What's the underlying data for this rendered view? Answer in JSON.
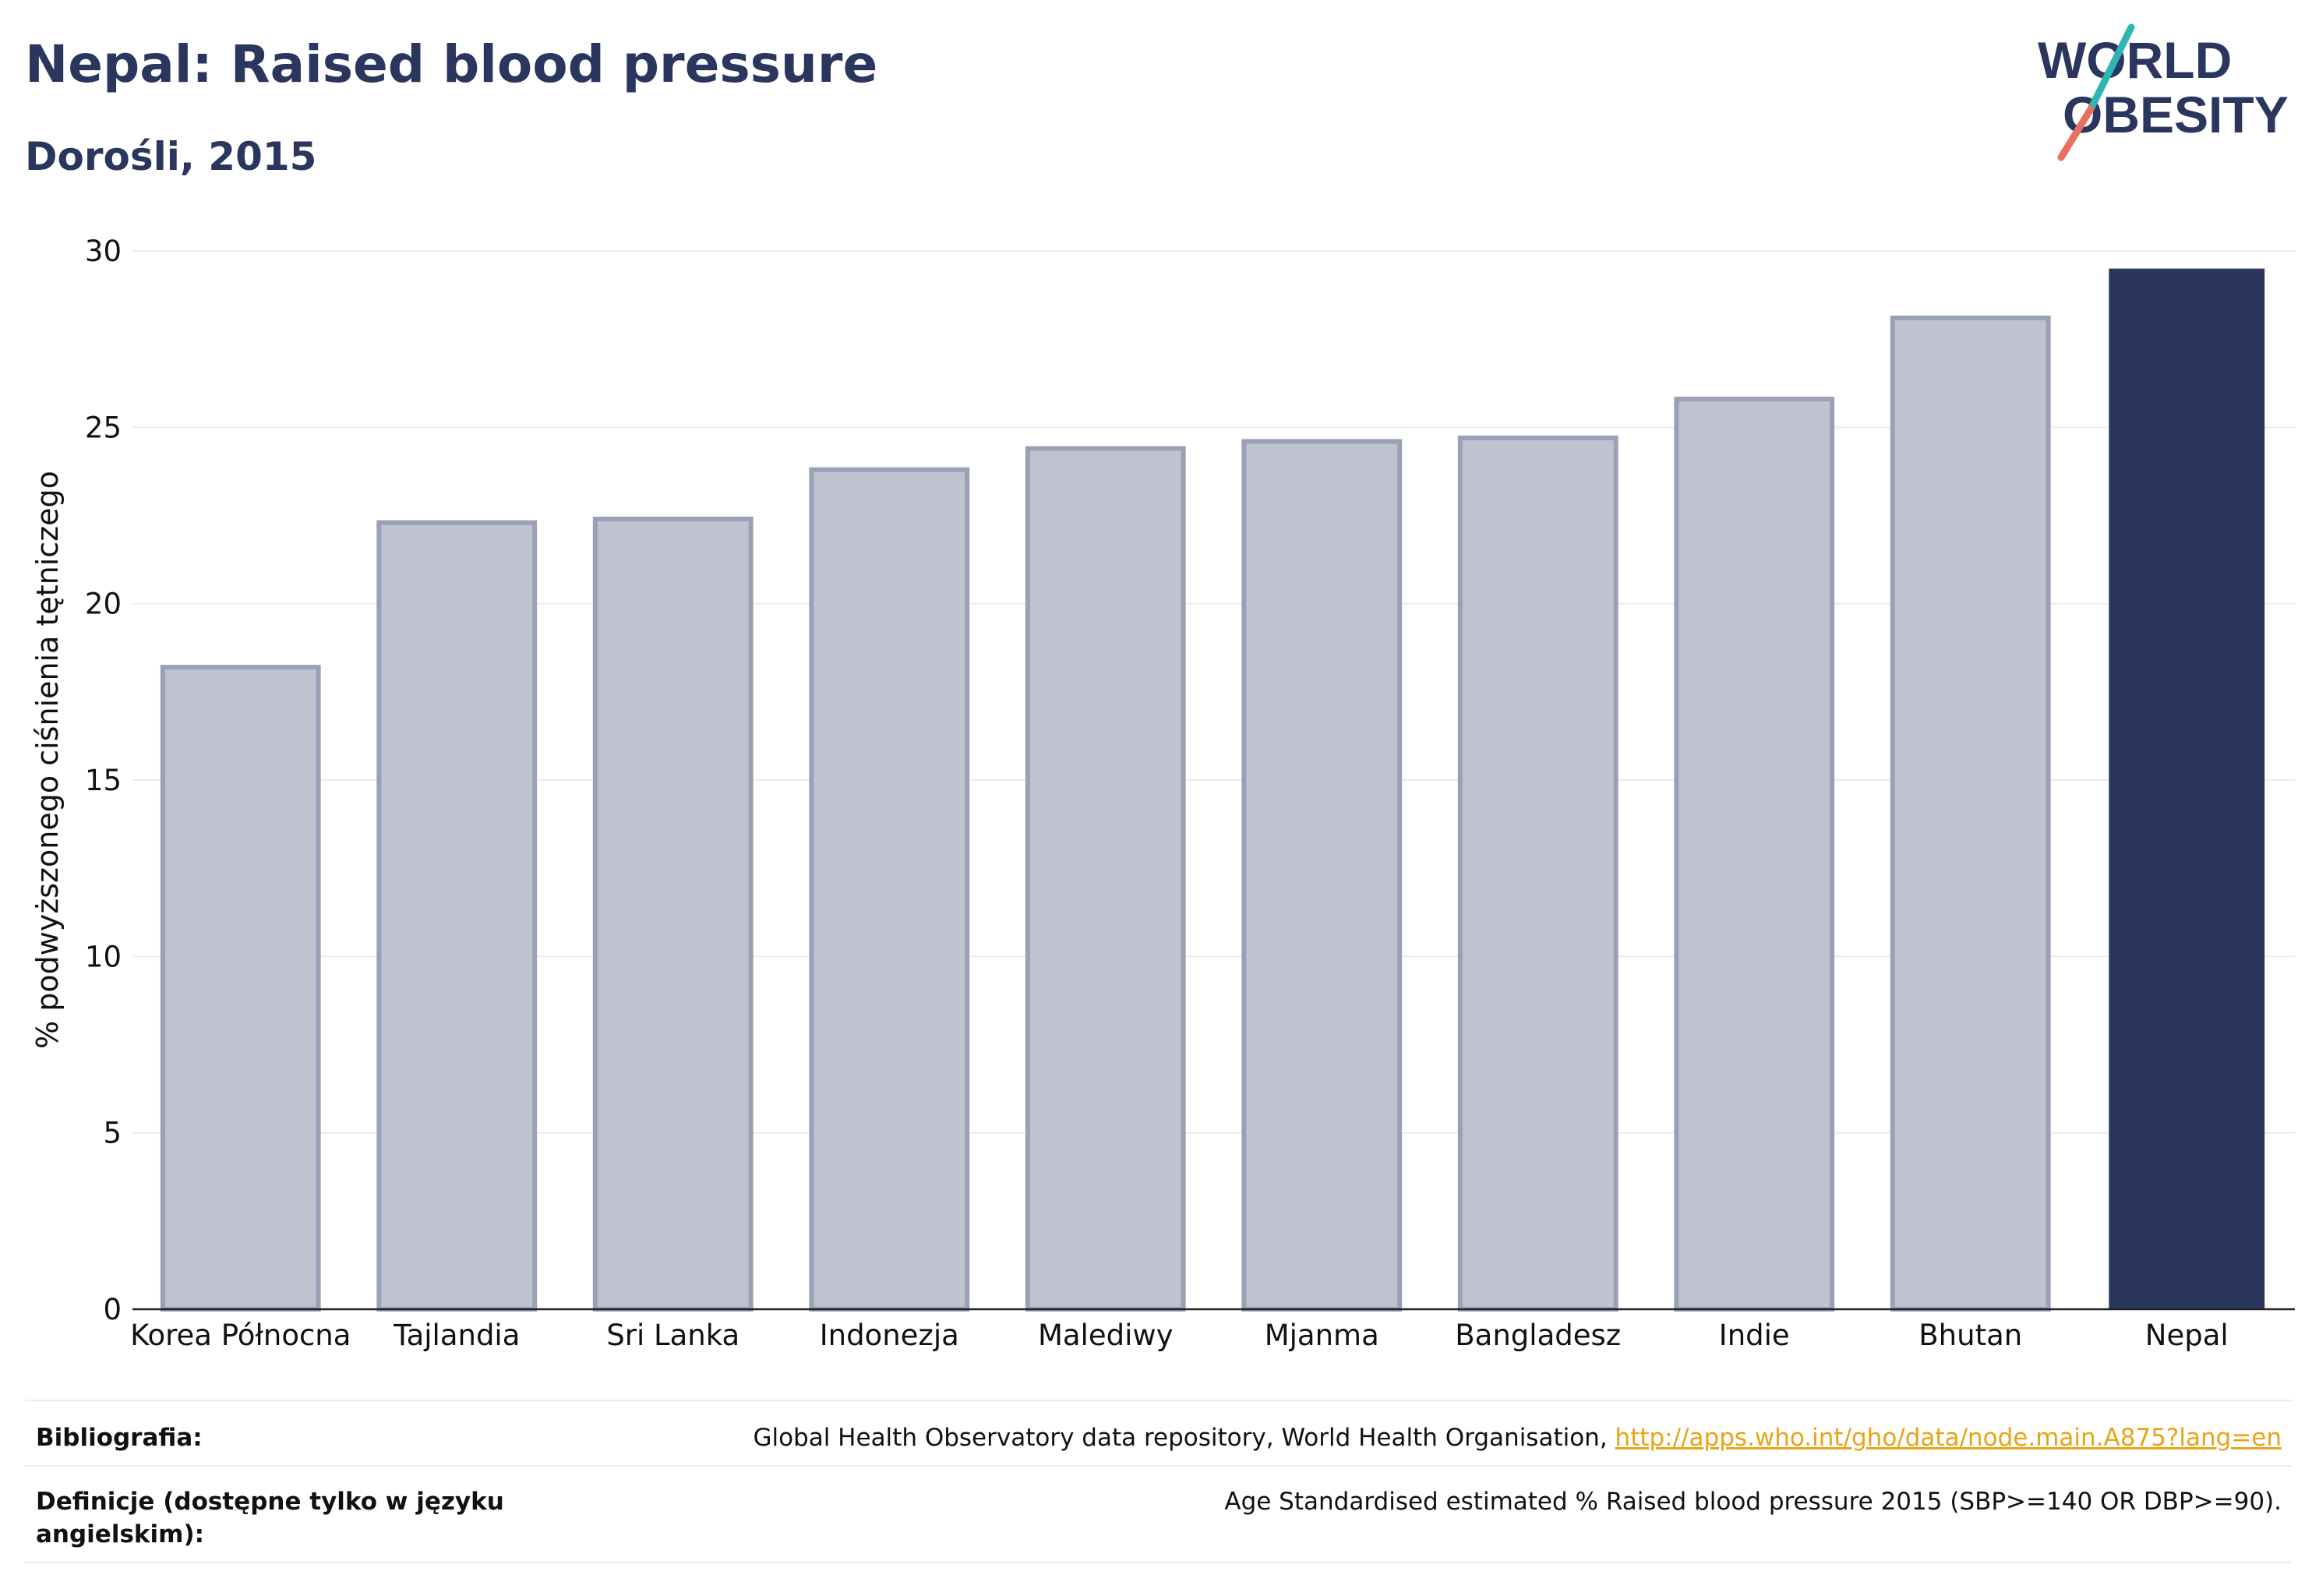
{
  "title": "Nepal: Raised blood pressure",
  "subtitle": "Dorośli, 2015",
  "logo": {
    "line1": "WORLD",
    "line2": "OBESITY"
  },
  "colors": {
    "highlight": "#2b365e",
    "muted": "#bfc2cf",
    "muted_border": "#9aa0b6",
    "grid": "#ebebeb",
    "link": "#e8a317"
  },
  "chart_data": {
    "type": "bar",
    "categories": [
      "Korea Północna",
      "Tajlandia",
      "Sri Lanka",
      "Indonezja",
      "Malediwy",
      "Mjanma",
      "Bangladesz",
      "Indie",
      "Bhutan",
      "Nepal"
    ],
    "values": [
      18.2,
      22.3,
      22.4,
      23.8,
      24.4,
      24.6,
      24.7,
      25.8,
      28.1,
      29.5
    ],
    "highlight": "Nepal",
    "ylabel": "% podwyższonego ciśnienia tętniczego",
    "xlabel": "",
    "ylim": [
      0,
      30
    ],
    "yticks": [
      0,
      5,
      10,
      15,
      20,
      25,
      30
    ],
    "grid": true
  },
  "footer": {
    "biblio_label": "Bibliografia:",
    "biblio_text": "Global Health Observatory data repository, World Health Organisation, ",
    "biblio_link": "http://apps.who.int/gho/data/node.main.A875?lang=en",
    "def_label": "Definicje (dostępne tylko w języku angielskim):",
    "def_text": "Age Standardised estimated % Raised blood pressure 2015 (SBP>=140 OR DBP>=90)."
  }
}
